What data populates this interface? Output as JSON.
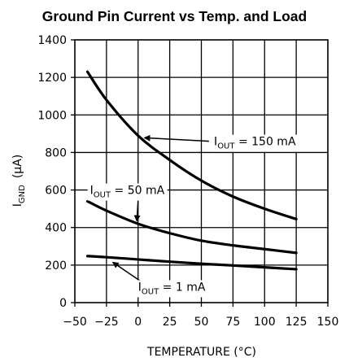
{
  "chart_data": {
    "type": "line",
    "title": "Ground Pin Current vs Temp. and Load",
    "xlabel": "TEMPERATURE (°C)",
    "ylabel_main": "I",
    "ylabel_sub": "GND",
    "ylabel_unit": "(μA)",
    "xlim": [
      -50,
      150
    ],
    "ylim": [
      0,
      1400
    ],
    "x_ticks": [
      -50,
      -25,
      0,
      25,
      50,
      75,
      100,
      125,
      150
    ],
    "y_ticks": [
      0,
      200,
      400,
      600,
      800,
      1000,
      1200,
      1400
    ],
    "grid": true,
    "series": [
      {
        "name": "I_OUT = 150 mA",
        "label_main": "I",
        "label_sub": "OUT",
        "label_rest": " = 150 mA",
        "x": [
          -40,
          -25,
          0,
          25,
          50,
          75,
          100,
          125
        ],
        "y": [
          1230,
          1080,
          890,
          760,
          650,
          565,
          500,
          445
        ]
      },
      {
        "name": "I_OUT = 50 mA",
        "label_main": "I",
        "label_sub": "OUT",
        "label_rest": " = 50 mA",
        "x": [
          -40,
          -25,
          0,
          25,
          50,
          75,
          100,
          125
        ],
        "y": [
          540,
          490,
          420,
          370,
          330,
          305,
          285,
          265
        ]
      },
      {
        "name": "I_OUT = 1 mA",
        "label_main": "I",
        "label_sub": "OUT",
        "label_rest": " = 1 mA",
        "x": [
          -40,
          -25,
          0,
          25,
          50,
          75,
          100,
          125
        ],
        "y": [
          248,
          242,
          230,
          218,
          207,
          198,
          188,
          178
        ]
      }
    ],
    "line_color": "#000000"
  }
}
